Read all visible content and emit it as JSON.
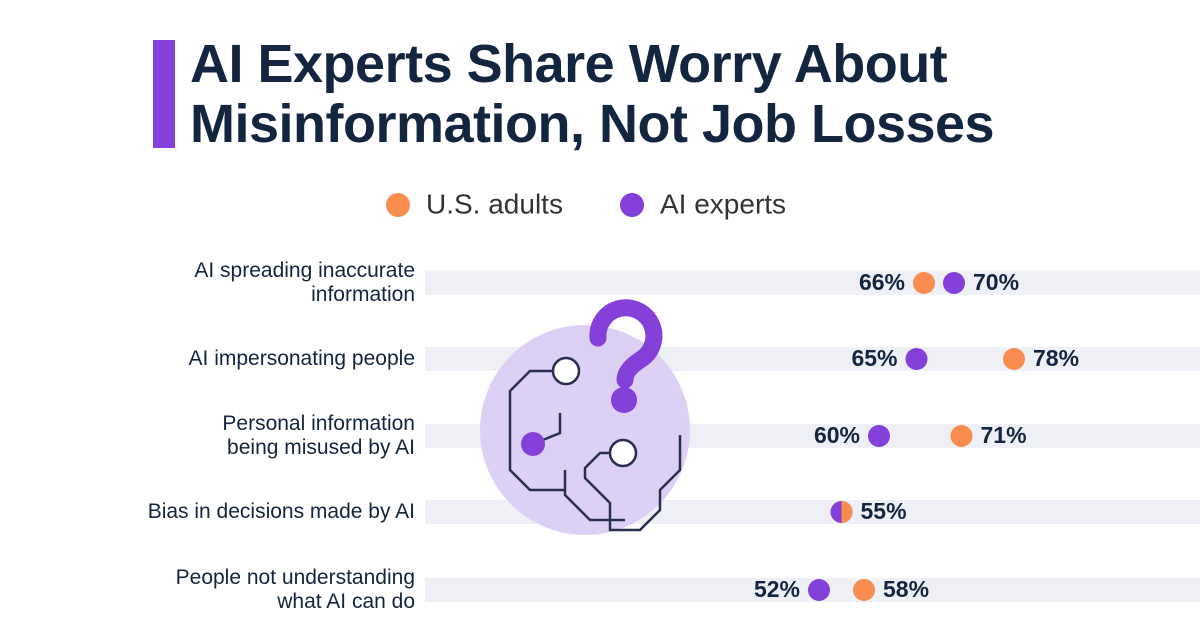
{
  "chart_data": {
    "type": "dot",
    "title": "AI Experts Share Worry About\nMisinformation, Not Job Losses",
    "categories": [
      "AI spreading inaccurate\ninformation",
      "AI impersonating people",
      "Personal information\nbeing misused by AI",
      "Bias in decisions made by AI",
      "People not understanding\nwhat AI can do"
    ],
    "series": [
      {
        "name": "U.S. adults",
        "color": "#f98d4f",
        "values": [
          66,
          78,
          71,
          55,
          58
        ],
        "value_labels": [
          "66%",
          "78%",
          "71%",
          "55%",
          "58%"
        ]
      },
      {
        "name": "AI experts",
        "color": "#8440d8",
        "values": [
          70,
          65,
          60,
          55,
          52
        ],
        "value_labels": [
          "70%",
          "65%",
          "60%",
          null,
          "52%"
        ]
      }
    ],
    "xlim": [
      0,
      100
    ]
  }
}
